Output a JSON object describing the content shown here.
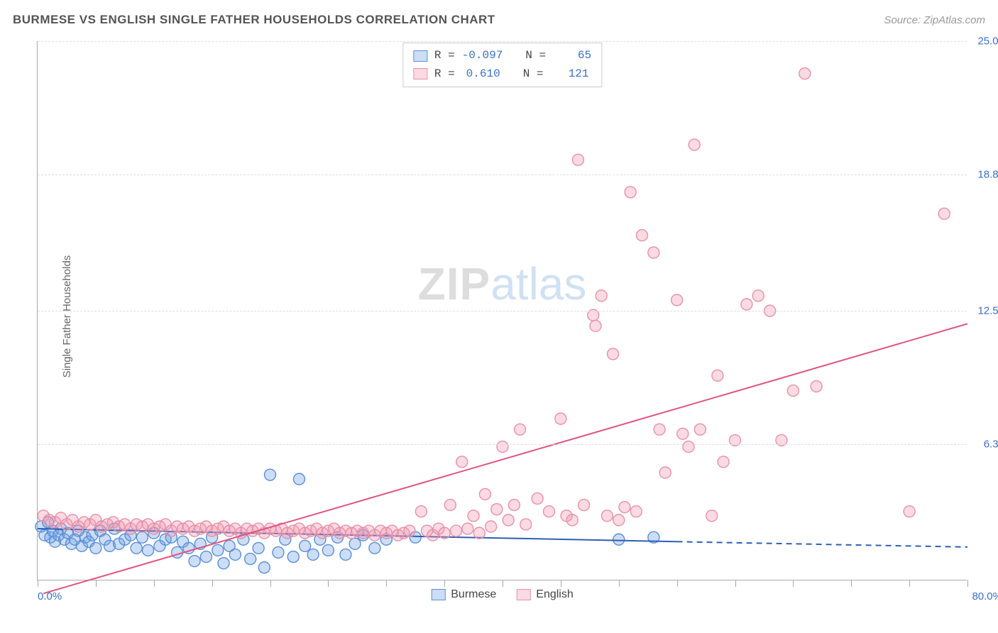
{
  "title": "BURMESE VS ENGLISH SINGLE FATHER HOUSEHOLDS CORRELATION CHART",
  "source": "Source: ZipAtlas.com",
  "ylabel": "Single Father Households",
  "watermark": {
    "part1": "ZIP",
    "part2": "atlas"
  },
  "chart": {
    "type": "scatter",
    "background_color": "#ffffff",
    "grid_color": "#dddddd",
    "axis_color": "#aaaaaa",
    "tick_label_color": "#3b6fc4",
    "xlim": [
      0,
      80
    ],
    "ylim": [
      0,
      25
    ],
    "xticks": [
      0,
      5,
      10,
      15,
      20,
      25,
      30,
      35,
      40,
      45,
      50,
      55,
      60,
      65,
      70,
      75,
      80
    ],
    "yticks": [
      6.3,
      12.5,
      18.8,
      25.0
    ],
    "ytick_labels": [
      "6.3%",
      "12.5%",
      "18.8%",
      "25.0%"
    ],
    "xmin_label": "0.0%",
    "xmax_label": "80.0%",
    "marker_radius": 8,
    "marker_stroke_width": 1.4,
    "line_width": 2,
    "series": [
      {
        "name": "Burmese",
        "fill_color": "rgba(110,160,225,0.35)",
        "stroke_color": "#5b8fd6",
        "line_color": "#2d5fb3",
        "R": "-0.097",
        "N": "65",
        "trend_start": {
          "x": 0,
          "y": 2.4
        },
        "trend_end_solid": {
          "x": 55,
          "y": 1.8
        },
        "trend_end_dash": {
          "x": 80,
          "y": 1.55
        },
        "points": [
          {
            "x": 0.3,
            "y": 2.5
          },
          {
            "x": 0.6,
            "y": 2.1
          },
          {
            "x": 0.9,
            "y": 2.7
          },
          {
            "x": 1.1,
            "y": 2.0
          },
          {
            "x": 1.3,
            "y": 2.3
          },
          {
            "x": 1.5,
            "y": 1.8
          },
          {
            "x": 1.8,
            "y": 2.1
          },
          {
            "x": 2.0,
            "y": 2.4
          },
          {
            "x": 2.3,
            "y": 1.9
          },
          {
            "x": 2.6,
            "y": 2.2
          },
          {
            "x": 2.9,
            "y": 1.7
          },
          {
            "x": 3.2,
            "y": 1.9
          },
          {
            "x": 3.5,
            "y": 2.3
          },
          {
            "x": 3.8,
            "y": 1.6
          },
          {
            "x": 4.1,
            "y": 2.0
          },
          {
            "x": 4.4,
            "y": 1.8
          },
          {
            "x": 4.7,
            "y": 2.1
          },
          {
            "x": 5.0,
            "y": 1.5
          },
          {
            "x": 5.4,
            "y": 2.3
          },
          {
            "x": 5.8,
            "y": 1.9
          },
          {
            "x": 6.2,
            "y": 1.6
          },
          {
            "x": 6.6,
            "y": 2.4
          },
          {
            "x": 7.0,
            "y": 1.7
          },
          {
            "x": 7.5,
            "y": 1.9
          },
          {
            "x": 8.0,
            "y": 2.1
          },
          {
            "x": 8.5,
            "y": 1.5
          },
          {
            "x": 9.0,
            "y": 2.0
          },
          {
            "x": 9.5,
            "y": 1.4
          },
          {
            "x": 10.0,
            "y": 2.2
          },
          {
            "x": 10.5,
            "y": 1.6
          },
          {
            "x": 11.0,
            "y": 1.9
          },
          {
            "x": 11.5,
            "y": 2.0
          },
          {
            "x": 12.0,
            "y": 1.3
          },
          {
            "x": 12.5,
            "y": 1.8
          },
          {
            "x": 13.0,
            "y": 1.5
          },
          {
            "x": 13.5,
            "y": 0.9
          },
          {
            "x": 14.0,
            "y": 1.7
          },
          {
            "x": 14.5,
            "y": 1.1
          },
          {
            "x": 15.0,
            "y": 2.0
          },
          {
            "x": 15.5,
            "y": 1.4
          },
          {
            "x": 16.0,
            "y": 0.8
          },
          {
            "x": 16.5,
            "y": 1.6
          },
          {
            "x": 17.0,
            "y": 1.2
          },
          {
            "x": 17.7,
            "y": 1.9
          },
          {
            "x": 18.3,
            "y": 1.0
          },
          {
            "x": 19.0,
            "y": 1.5
          },
          {
            "x": 19.5,
            "y": 0.6
          },
          {
            "x": 20.0,
            "y": 4.9
          },
          {
            "x": 20.7,
            "y": 1.3
          },
          {
            "x": 21.3,
            "y": 1.9
          },
          {
            "x": 22.0,
            "y": 1.1
          },
          {
            "x": 22.5,
            "y": 4.7
          },
          {
            "x": 23.0,
            "y": 1.6
          },
          {
            "x": 23.7,
            "y": 1.2
          },
          {
            "x": 24.3,
            "y": 1.9
          },
          {
            "x": 25.0,
            "y": 1.4
          },
          {
            "x": 25.8,
            "y": 2.0
          },
          {
            "x": 26.5,
            "y": 1.2
          },
          {
            "x": 27.3,
            "y": 1.7
          },
          {
            "x": 28.0,
            "y": 2.1
          },
          {
            "x": 29.0,
            "y": 1.5
          },
          {
            "x": 30.0,
            "y": 1.9
          },
          {
            "x": 32.5,
            "y": 2.0
          },
          {
            "x": 50.0,
            "y": 1.9
          },
          {
            "x": 53.0,
            "y": 2.0
          }
        ]
      },
      {
        "name": "English",
        "fill_color": "rgba(240,150,175,0.35)",
        "stroke_color": "#e691a8",
        "line_color": "#e05580",
        "R": "0.610",
        "N": "121",
        "trend_start": {
          "x": 0.5,
          "y": -0.6
        },
        "trend_end_solid": {
          "x": 80,
          "y": 11.9
        },
        "trend_end_dash": null,
        "points": [
          {
            "x": 0.5,
            "y": 3.0
          },
          {
            "x": 1.0,
            "y": 2.8
          },
          {
            "x": 1.5,
            "y": 2.7
          },
          {
            "x": 2.0,
            "y": 2.9
          },
          {
            "x": 2.5,
            "y": 2.6
          },
          {
            "x": 3.0,
            "y": 2.8
          },
          {
            "x": 3.5,
            "y": 2.5
          },
          {
            "x": 4.0,
            "y": 2.7
          },
          {
            "x": 4.5,
            "y": 2.6
          },
          {
            "x": 5.0,
            "y": 2.8
          },
          {
            "x": 5.5,
            "y": 2.5
          },
          {
            "x": 6.0,
            "y": 2.6
          },
          {
            "x": 6.5,
            "y": 2.7
          },
          {
            "x": 7.0,
            "y": 2.5
          },
          {
            "x": 7.5,
            "y": 2.6
          },
          {
            "x": 8.0,
            "y": 2.4
          },
          {
            "x": 8.5,
            "y": 2.6
          },
          {
            "x": 9.0,
            "y": 2.5
          },
          {
            "x": 9.5,
            "y": 2.6
          },
          {
            "x": 10.0,
            "y": 2.4
          },
          {
            "x": 10.5,
            "y": 2.5
          },
          {
            "x": 11.0,
            "y": 2.6
          },
          {
            "x": 11.5,
            "y": 2.3
          },
          {
            "x": 12.0,
            "y": 2.5
          },
          {
            "x": 12.5,
            "y": 2.4
          },
          {
            "x": 13.0,
            "y": 2.5
          },
          {
            "x": 13.5,
            "y": 2.3
          },
          {
            "x": 14.0,
            "y": 2.4
          },
          {
            "x": 14.5,
            "y": 2.5
          },
          {
            "x": 15.0,
            "y": 2.3
          },
          {
            "x": 15.5,
            "y": 2.4
          },
          {
            "x": 16.0,
            "y": 2.5
          },
          {
            "x": 16.5,
            "y": 2.3
          },
          {
            "x": 17.0,
            "y": 2.4
          },
          {
            "x": 17.5,
            "y": 2.2
          },
          {
            "x": 18.0,
            "y": 2.4
          },
          {
            "x": 18.5,
            "y": 2.3
          },
          {
            "x": 19.0,
            "y": 2.4
          },
          {
            "x": 19.5,
            "y": 2.2
          },
          {
            "x": 20.0,
            "y": 2.4
          },
          {
            "x": 20.5,
            "y": 2.3
          },
          {
            "x": 21.0,
            "y": 2.4
          },
          {
            "x": 21.5,
            "y": 2.2
          },
          {
            "x": 22.0,
            "y": 2.3
          },
          {
            "x": 22.5,
            "y": 2.4
          },
          {
            "x": 23.0,
            "y": 2.2
          },
          {
            "x": 23.5,
            "y": 2.3
          },
          {
            "x": 24.0,
            "y": 2.4
          },
          {
            "x": 24.5,
            "y": 2.2
          },
          {
            "x": 25.0,
            "y": 2.3
          },
          {
            "x": 25.5,
            "y": 2.4
          },
          {
            "x": 26.0,
            "y": 2.2
          },
          {
            "x": 26.5,
            "y": 2.3
          },
          {
            "x": 27.0,
            "y": 2.2
          },
          {
            "x": 27.5,
            "y": 2.3
          },
          {
            "x": 28.0,
            "y": 2.2
          },
          {
            "x": 28.5,
            "y": 2.3
          },
          {
            "x": 29.0,
            "y": 2.1
          },
          {
            "x": 29.5,
            "y": 2.3
          },
          {
            "x": 30.0,
            "y": 2.2
          },
          {
            "x": 30.5,
            "y": 2.3
          },
          {
            "x": 31.0,
            "y": 2.1
          },
          {
            "x": 31.5,
            "y": 2.2
          },
          {
            "x": 32.0,
            "y": 2.3
          },
          {
            "x": 33.0,
            "y": 3.2
          },
          {
            "x": 33.5,
            "y": 2.3
          },
          {
            "x": 34.0,
            "y": 2.1
          },
          {
            "x": 34.5,
            "y": 2.4
          },
          {
            "x": 35.0,
            "y": 2.2
          },
          {
            "x": 35.5,
            "y": 3.5
          },
          {
            "x": 36.0,
            "y": 2.3
          },
          {
            "x": 36.5,
            "y": 5.5
          },
          {
            "x": 37.0,
            "y": 2.4
          },
          {
            "x": 37.5,
            "y": 3.0
          },
          {
            "x": 38.0,
            "y": 2.2
          },
          {
            "x": 38.5,
            "y": 4.0
          },
          {
            "x": 39.0,
            "y": 2.5
          },
          {
            "x": 39.5,
            "y": 3.3
          },
          {
            "x": 40.0,
            "y": 6.2
          },
          {
            "x": 40.5,
            "y": 2.8
          },
          {
            "x": 41.0,
            "y": 3.5
          },
          {
            "x": 41.5,
            "y": 7.0
          },
          {
            "x": 42.0,
            "y": 2.6
          },
          {
            "x": 43.0,
            "y": 3.8
          },
          {
            "x": 44.0,
            "y": 3.2
          },
          {
            "x": 45.0,
            "y": 7.5
          },
          {
            "x": 45.5,
            "y": 3.0
          },
          {
            "x": 46.0,
            "y": 2.8
          },
          {
            "x": 46.5,
            "y": 19.5
          },
          {
            "x": 47.0,
            "y": 3.5
          },
          {
            "x": 47.8,
            "y": 12.3
          },
          {
            "x": 48.0,
            "y": 11.8
          },
          {
            "x": 48.5,
            "y": 13.2
          },
          {
            "x": 49.0,
            "y": 3.0
          },
          {
            "x": 49.5,
            "y": 10.5
          },
          {
            "x": 50.0,
            "y": 2.8
          },
          {
            "x": 50.5,
            "y": 3.4
          },
          {
            "x": 51.0,
            "y": 18.0
          },
          {
            "x": 51.5,
            "y": 3.2
          },
          {
            "x": 52.0,
            "y": 16.0
          },
          {
            "x": 53.0,
            "y": 15.2
          },
          {
            "x": 53.5,
            "y": 7.0
          },
          {
            "x": 54.0,
            "y": 5.0
          },
          {
            "x": 55.0,
            "y": 13.0
          },
          {
            "x": 55.5,
            "y": 6.8
          },
          {
            "x": 56.0,
            "y": 6.2
          },
          {
            "x": 56.5,
            "y": 20.2
          },
          {
            "x": 57.0,
            "y": 7.0
          },
          {
            "x": 58.0,
            "y": 3.0
          },
          {
            "x": 58.5,
            "y": 9.5
          },
          {
            "x": 59.0,
            "y": 5.5
          },
          {
            "x": 60.0,
            "y": 6.5
          },
          {
            "x": 61.0,
            "y": 12.8
          },
          {
            "x": 62.0,
            "y": 13.2
          },
          {
            "x": 63.0,
            "y": 12.5
          },
          {
            "x": 64.0,
            "y": 6.5
          },
          {
            "x": 65.0,
            "y": 8.8
          },
          {
            "x": 66.0,
            "y": 23.5
          },
          {
            "x": 67.0,
            "y": 9.0
          },
          {
            "x": 75.0,
            "y": 3.2
          },
          {
            "x": 78.0,
            "y": 17.0
          }
        ]
      }
    ]
  },
  "top_legend_labels": {
    "R": "R =",
    "N": "N ="
  },
  "bottom_legend": [
    "Burmese",
    "English"
  ]
}
